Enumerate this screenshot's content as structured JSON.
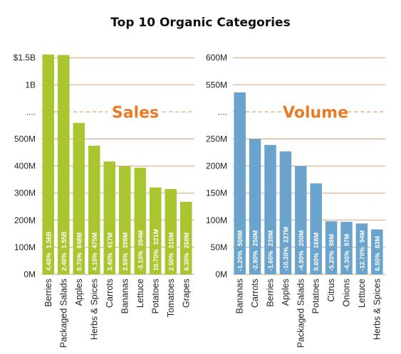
{
  "title": "Top 10 Organic Categories",
  "colors": {
    "sales": "#a9c52f",
    "volume": "#6aa3cc",
    "accent": "#ea7a25",
    "grid": "#d9a374"
  },
  "chart_data": [
    {
      "type": "bar",
      "label": "Sales",
      "yticks": [
        "0M",
        "100M",
        "200M",
        "300M",
        "400M",
        "500M",
        "....",
        "1B",
        "$1.5B"
      ],
      "break_tick": "....",
      "ylim": [
        0,
        1560000000
      ],
      "categories": [
        "Berries",
        "Packaged Salads",
        "Apples",
        "Herbs & Spices",
        "Carrots",
        "Bananas",
        "Lettuce",
        "Potatoes",
        "Tomatoes",
        "Grapes"
      ],
      "values": [
        1560000000,
        1550000000,
        648000000,
        475000000,
        417000000,
        399000000,
        394000000,
        321000000,
        315000000,
        268000000
      ],
      "value_labels": [
        "1.56B",
        "1.55B",
        "648M",
        "475M",
        "417M",
        "399M",
        "394M",
        "321M",
        "315M",
        "268M"
      ],
      "change_labels": [
        "4.40%",
        "2.40%",
        "0.70%",
        "4.10%",
        "3.40%",
        "3.90%",
        "-3.10%",
        "10.70%",
        "2.90%",
        "8.30%"
      ]
    },
    {
      "type": "bar",
      "label": "Volume",
      "yticks": [
        "0M",
        "50M",
        "100M",
        "150M",
        "200M",
        "250M",
        "....",
        "550M",
        "600M"
      ],
      "break_tick": "....",
      "ylim": [
        0,
        600000000
      ],
      "categories": [
        "Bananas",
        "Carrots",
        "Berries",
        "Apples",
        "Packaged Salads",
        "Potatoes",
        "Citrus",
        "Onions",
        "Lettuce",
        "Herbs & Spices"
      ],
      "values": [
        508000000,
        250000000,
        239000000,
        227000000,
        200000000,
        168000000,
        98000000,
        97000000,
        94000000,
        83000000
      ],
      "value_labels": [
        "508M",
        "250M",
        "239M",
        "227M",
        "200M",
        "168M",
        "98M",
        "97M",
        "94M",
        "83M"
      ],
      "change_labels": [
        "-1.20%",
        "-2.90%",
        "-1.60%",
        "-10.30%",
        "-4.90%",
        "0.80%",
        "-5.20%",
        "-4.30%",
        "-12.70%",
        "6.50%"
      ]
    }
  ]
}
